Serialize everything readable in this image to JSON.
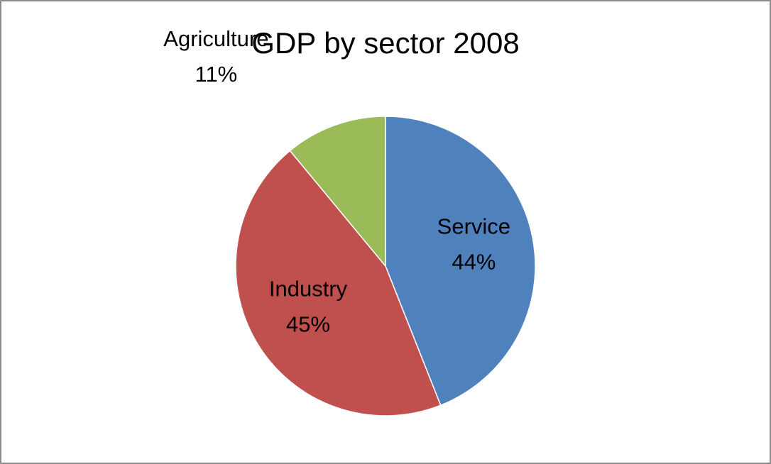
{
  "chart_data": {
    "type": "pie",
    "title": "GDP by sector 2008",
    "categories": [
      "Service",
      "Industry",
      "Agriculture"
    ],
    "values": [
      44,
      45,
      11
    ],
    "value_labels": [
      "44%",
      "45%",
      "11%"
    ],
    "colors": [
      "#4f81bd",
      "#c0504d",
      "#9bbb59"
    ]
  }
}
